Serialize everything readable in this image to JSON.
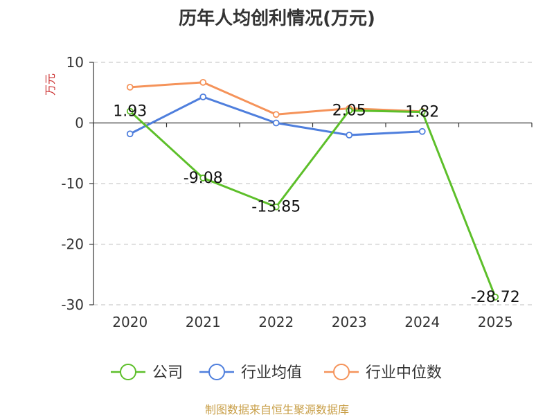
{
  "chart_data": {
    "type": "line",
    "title": "历年人均创利情况(万元)",
    "ylabel": "万元",
    "xlabel": "",
    "categories": [
      "2020",
      "2021",
      "2022",
      "2023",
      "2024",
      "2025"
    ],
    "ylim": [
      -30,
      10
    ],
    "yticks": [
      10,
      0,
      -10,
      -20,
      -30
    ],
    "grid": true,
    "legend_position": "bottom",
    "series": [
      {
        "name": "公司",
        "color": "#5dbf2a",
        "values": [
          1.93,
          -9.08,
          -13.85,
          2.05,
          1.82,
          -28.72
        ],
        "labels": [
          "1.93",
          "-9.08",
          "-13.85",
          "2.05",
          "1.82",
          "-28.72"
        ]
      },
      {
        "name": "行业均值",
        "color": "#4f7fdd",
        "values": [
          -1.8,
          4.3,
          0.0,
          -2.0,
          -1.4,
          null
        ]
      },
      {
        "name": "行业中位数",
        "color": "#f5935a",
        "values": [
          5.9,
          6.7,
          1.4,
          2.4,
          1.9,
          null
        ]
      }
    ]
  },
  "source": "制图数据来自恒生聚源数据库"
}
